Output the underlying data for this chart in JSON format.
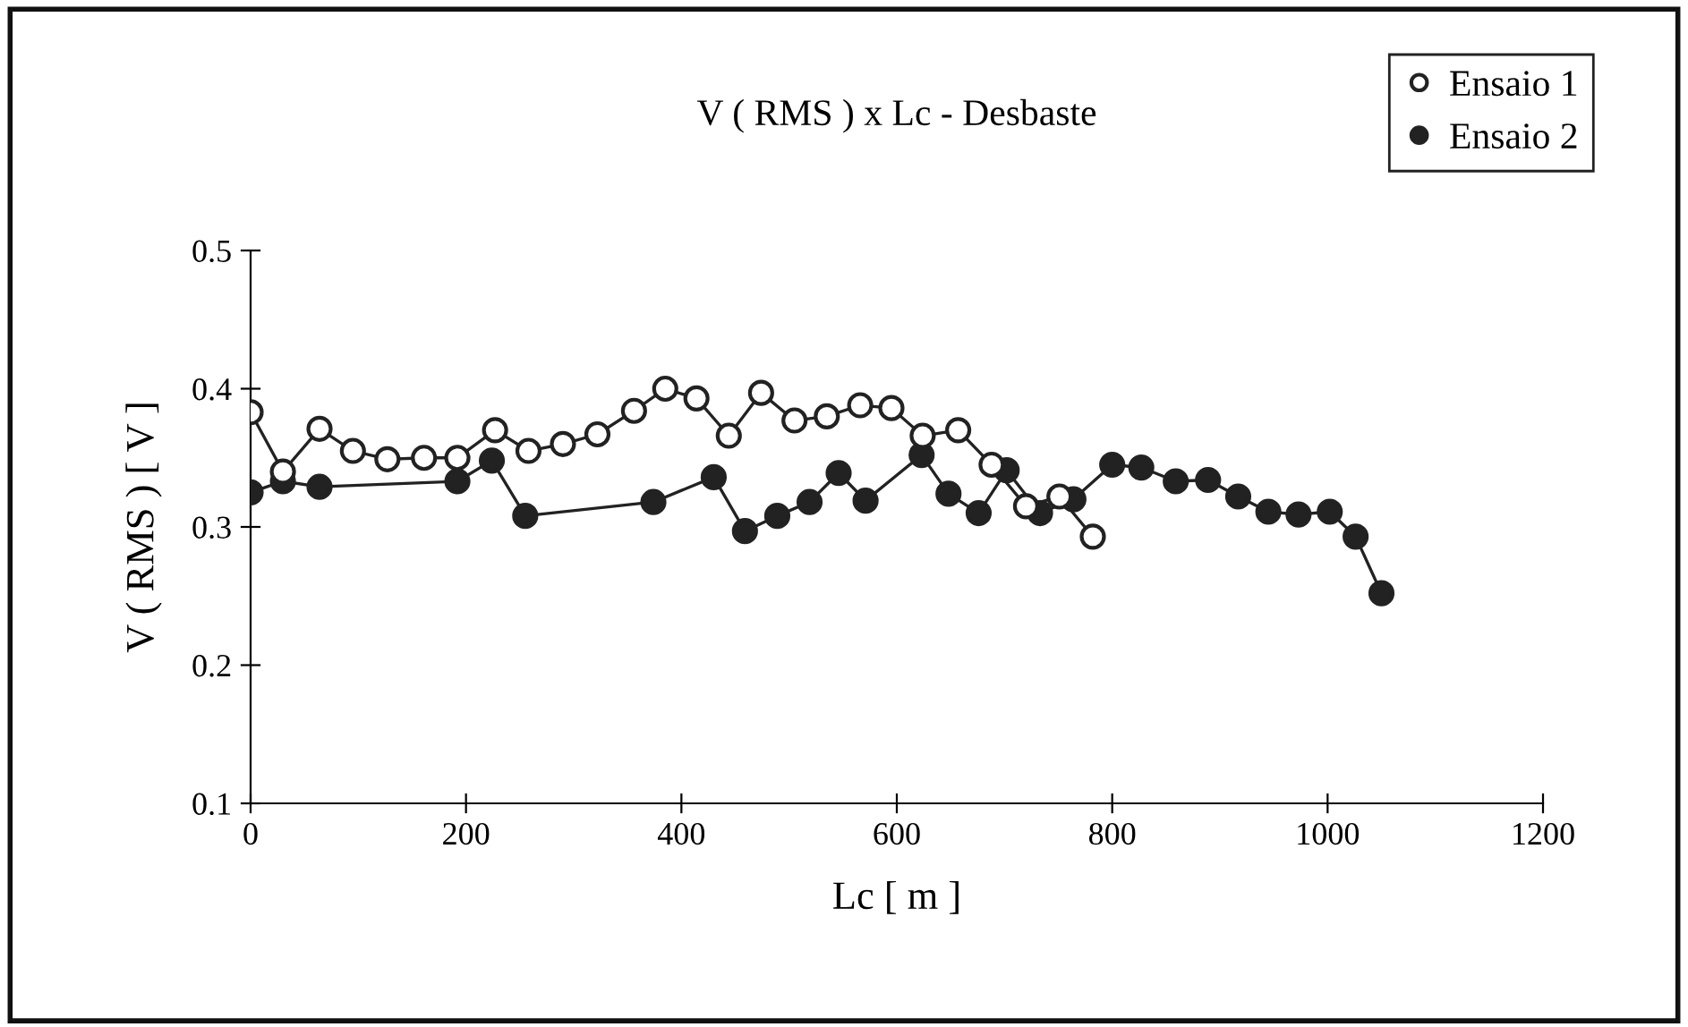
{
  "chart_data": {
    "type": "line",
    "title": "V ( RMS ) x Lc - Desbaste",
    "xlabel": "Lc [ m ]",
    "ylabel": "V ( RMS ) [ V ]",
    "xlim": [
      0,
      1200
    ],
    "xticks": [
      0,
      200,
      400,
      600,
      800,
      1000,
      1200
    ],
    "ylim": [
      0.1,
      0.5
    ],
    "yticks": [
      0.1,
      0.2,
      0.3,
      0.4,
      0.5
    ],
    "grid": false,
    "legend": "top right",
    "marker": "circle",
    "line_style": "solid",
    "series": [
      {
        "name": "Ensaio 1",
        "color": "#222222",
        "x": [
          0,
          30,
          64,
          95,
          127,
          161,
          192,
          227,
          258,
          290,
          322,
          356,
          385,
          414,
          444,
          474,
          505,
          535,
          566,
          595,
          624,
          657,
          688,
          720,
          751,
          782
        ],
        "values": [
          0.383,
          0.34,
          0.371,
          0.355,
          0.349,
          0.35,
          0.35,
          0.37,
          0.355,
          0.36,
          0.367,
          0.384,
          0.4,
          0.393,
          0.366,
          0.397,
          0.377,
          0.38,
          0.388,
          0.386,
          0.366,
          0.37,
          0.345,
          0.315,
          0.322,
          0.293
        ]
      },
      {
        "name": "Ensaio 2",
        "color": "#222222",
        "x": [
          0,
          30,
          64,
          192,
          224,
          255,
          374,
          430,
          459,
          489,
          519,
          546,
          571,
          623,
          648,
          676,
          702,
          733,
          764,
          800,
          827,
          859,
          889,
          917,
          945,
          973,
          1002,
          1026,
          1050
        ],
        "values": [
          0.325,
          0.333,
          0.329,
          0.333,
          0.348,
          0.308,
          0.318,
          0.336,
          0.297,
          0.308,
          0.318,
          0.339,
          0.319,
          0.352,
          0.324,
          0.31,
          0.341,
          0.31,
          0.32,
          0.345,
          0.343,
          0.333,
          0.334,
          0.322,
          0.311,
          0.309,
          0.311,
          0.293,
          0.252
        ]
      }
    ]
  }
}
